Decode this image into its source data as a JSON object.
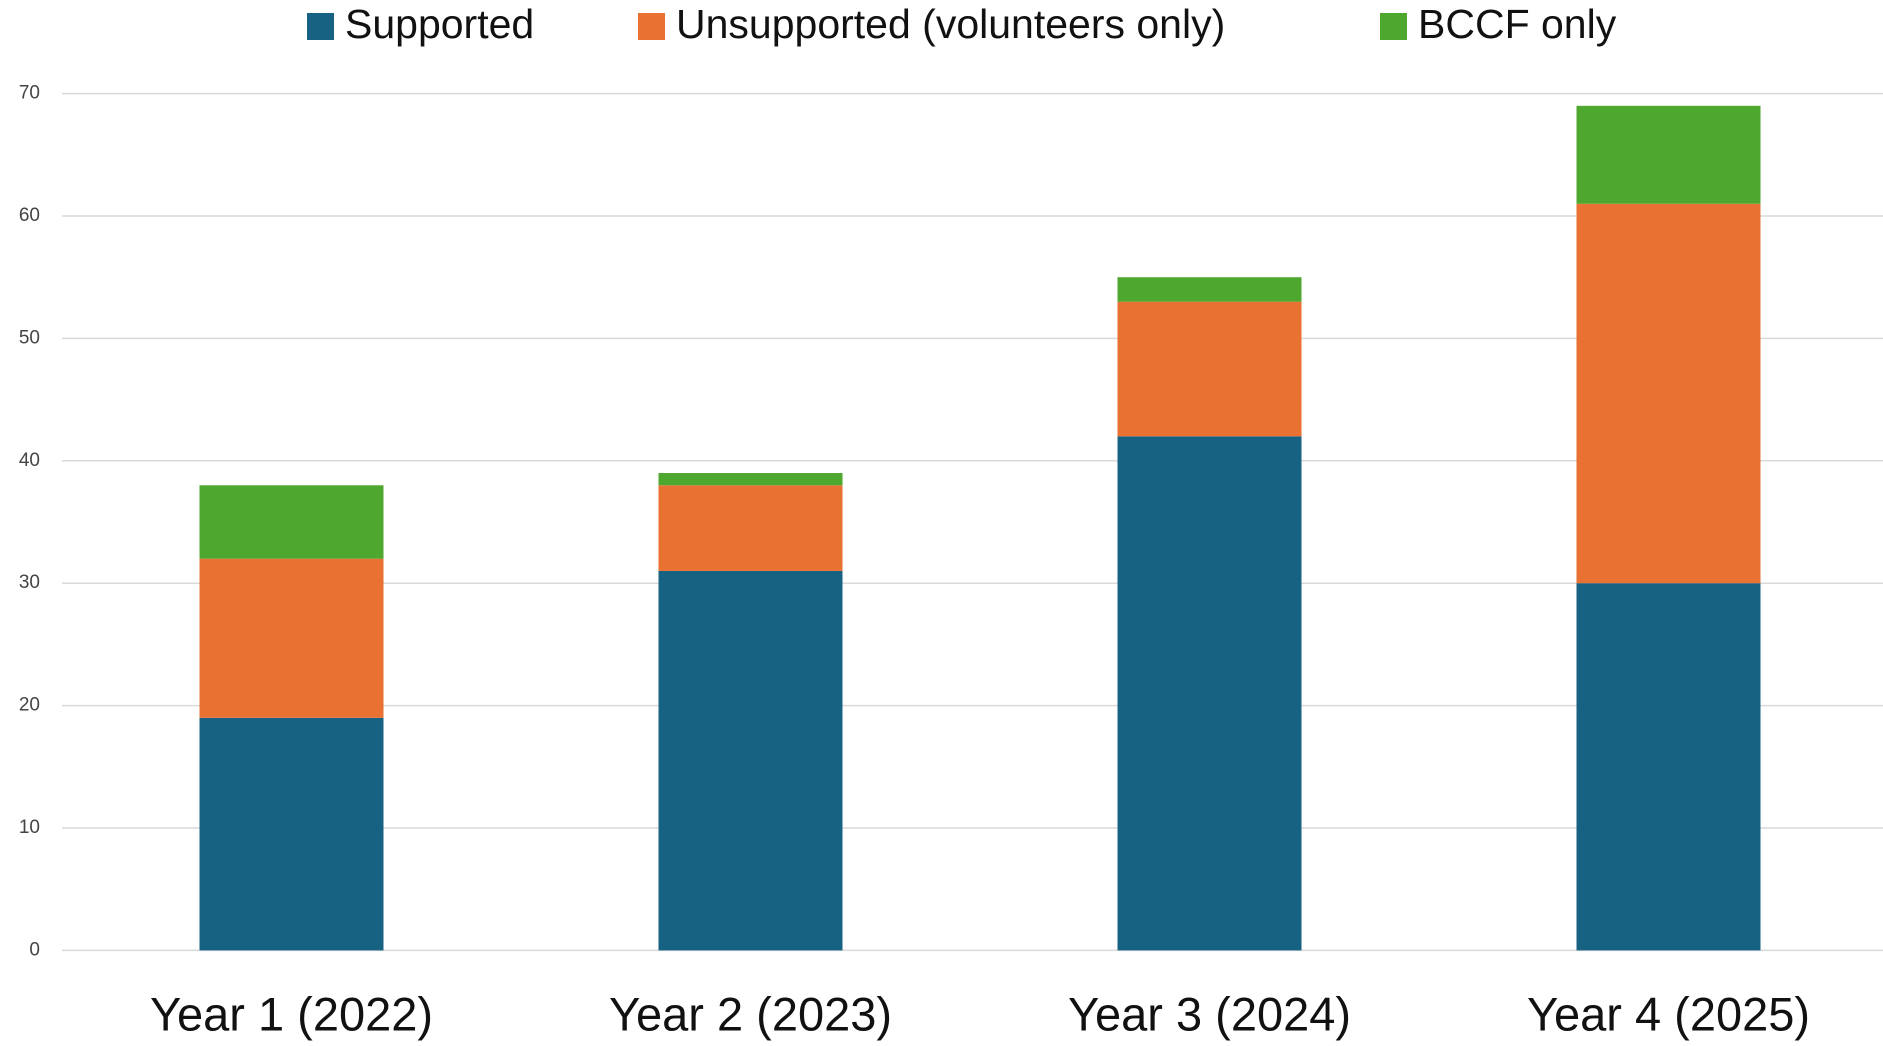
{
  "chart_data": {
    "type": "stacked_bar",
    "categories": [
      "Year 1 (2022)",
      "Year 2 (2023)",
      "Year 3 (2024)",
      "Year 4 (2025)"
    ],
    "series": [
      {
        "name": "Supported",
        "color": "#176183",
        "values": [
          19,
          31,
          42,
          30
        ]
      },
      {
        "name": "Unsupported (volunteers only)",
        "color": "#e97132",
        "values": [
          13,
          7,
          11,
          31
        ]
      },
      {
        "name": "BCCF only",
        "color": "#4ea72e",
        "values": [
          6,
          1,
          2,
          8
        ]
      }
    ],
    "ylim": [
      0,
      70
    ],
    "yticks": [
      0,
      10,
      20,
      30,
      40,
      50,
      60,
      70
    ],
    "grid": true,
    "legend": "top"
  }
}
